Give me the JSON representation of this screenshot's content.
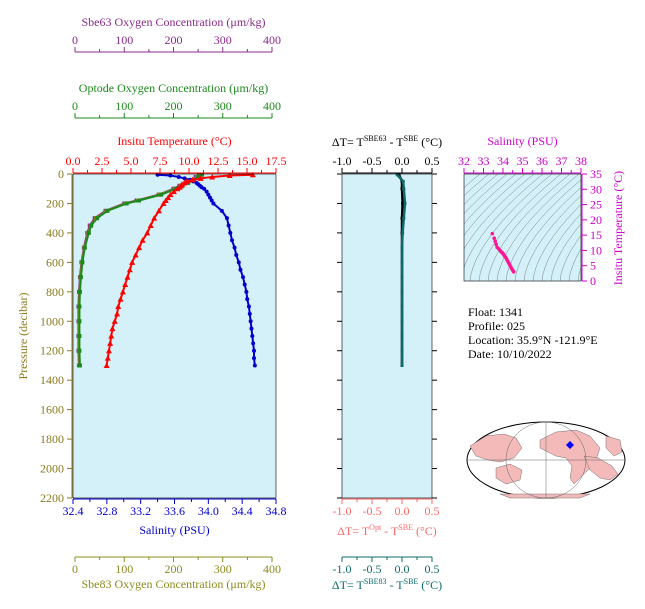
{
  "colors": {
    "sbe63": "#8b2a8b",
    "optode": "#1b8a1b",
    "temperature": "#ff0000",
    "salinity": "#0000cc",
    "pressure": "#8b7a1e",
    "sbe83": "#8b8b1e",
    "dt_top": "#000000",
    "dt_opt": "#ff6666",
    "dt_sbe83": "#0f6b6b",
    "panel_bg": "#d4f0f8",
    "ts_axis": "#cc00cc",
    "ts_points": "#ff1493"
  },
  "axes": {
    "sbe63": {
      "label": "Sbe63 Oxygen Concentration (μm/kg)",
      "ticks": [
        "0",
        "100",
        "200",
        "300",
        "400"
      ],
      "range": [
        0,
        400
      ]
    },
    "optode": {
      "label": "Optode Oxygen Concentration (μm/kg)",
      "ticks": [
        "0",
        "100",
        "200",
        "300",
        "400"
      ],
      "range": [
        0,
        400
      ]
    },
    "temperature": {
      "label": "Insitu Temperature (°C)",
      "ticks": [
        "0.0",
        "2.5",
        "5.0",
        "7.5",
        "10.0",
        "12.5",
        "15.0",
        "17.5"
      ],
      "range": [
        0,
        17.5
      ]
    },
    "pressure": {
      "label": "Pressure (decibar)",
      "ticks": [
        "0",
        "200",
        "400",
        "600",
        "800",
        "1000",
        "1200",
        "1400",
        "1600",
        "1800",
        "2000",
        "2200"
      ],
      "range": [
        0,
        2200
      ]
    },
    "salinity": {
      "label": "Salinity (PSU)",
      "ticks": [
        "32.4",
        "32.8",
        "33.2",
        "33.6",
        "34.0",
        "34.4",
        "34.8"
      ],
      "range": [
        32.4,
        34.8
      ]
    },
    "sbe83": {
      "label": "Sbe83 Oxygen Concentration (μm/kg)",
      "ticks": [
        "0",
        "100",
        "200",
        "300",
        "400"
      ],
      "range": [
        0,
        400
      ]
    },
    "dt_ticks": [
      "-1.0",
      "-0.5",
      "0.0",
      "0.5"
    ],
    "dt_range": [
      -1.0,
      0.5
    ],
    "dt_top_label": "ΔT= T<sup>SBE63</sup> - T<sup>SBE</sup> (°C)",
    "dt_opt_label": "ΔT= T<sup>Opt</sup> - T<sup>SBE</sup> (°C)",
    "dt_sbe83_label": "ΔT= T<sup>SBE83</sup> - T<sup>SBE</sup> (°C)",
    "ts_salinity": {
      "label": "Salinity (PSU)",
      "ticks": [
        "32",
        "33",
        "34",
        "35",
        "36",
        "37",
        "38"
      ],
      "range": [
        32,
        38
      ]
    },
    "ts_temperature": {
      "label": "Insitu Temperature (°C)",
      "ticks": [
        "0",
        "5",
        "10",
        "15",
        "20",
        "25",
        "30",
        "35"
      ],
      "range": [
        0,
        35
      ]
    }
  },
  "info": {
    "float": "Float:  1341",
    "profile": "Profile:  025",
    "location": "Location:  35.9°N  -121.9°E",
    "date": "Date:  10/10/2022"
  },
  "chart_data": [
    {
      "type": "line",
      "title": "",
      "ylabel": "Pressure (decibar)",
      "ylim": [
        2200,
        0
      ],
      "series": [
        {
          "name": "Insitu Temperature (°C)",
          "color": "#ff0000",
          "marker": "triangle",
          "pressure": [
            5,
            10,
            20,
            30,
            40,
            50,
            60,
            70,
            80,
            90,
            100,
            120,
            140,
            160,
            180,
            200,
            250,
            300,
            350,
            400,
            450,
            500,
            550,
            600,
            650,
            700,
            750,
            800,
            850,
            900,
            950,
            1000,
            1050,
            1100,
            1150,
            1200,
            1250,
            1300
          ],
          "values": [
            15.5,
            13.5,
            12.0,
            11.0,
            10.3,
            9.8,
            9.6,
            9.4,
            9.3,
            9.2,
            9.0,
            8.7,
            8.4,
            8.2,
            8.0,
            7.8,
            7.4,
            7.0,
            6.7,
            6.4,
            6.0,
            5.7,
            5.4,
            5.1,
            4.9,
            4.7,
            4.5,
            4.3,
            4.1,
            3.9,
            3.8,
            3.6,
            3.4,
            3.3,
            3.2,
            3.1,
            3.0,
            2.9
          ]
        },
        {
          "name": "Salinity (PSU)",
          "color": "#0000cc",
          "marker": "dot",
          "pressure": [
            5,
            10,
            20,
            30,
            40,
            50,
            60,
            70,
            80,
            90,
            100,
            120,
            140,
            160,
            180,
            200,
            250,
            300,
            350,
            400,
            450,
            500,
            550,
            600,
            650,
            700,
            750,
            800,
            850,
            900,
            950,
            1000,
            1050,
            1100,
            1150,
            1200,
            1250,
            1300
          ],
          "values": [
            33.4,
            33.55,
            33.65,
            33.72,
            33.78,
            33.82,
            33.86,
            33.88,
            33.9,
            33.92,
            33.95,
            33.98,
            34.0,
            34.02,
            34.04,
            34.06,
            34.16,
            34.22,
            34.24,
            34.26,
            34.28,
            34.31,
            34.33,
            34.36,
            34.38,
            34.41,
            34.43,
            34.45,
            34.46,
            34.48,
            34.49,
            34.5,
            34.51,
            34.52,
            34.53,
            34.54,
            34.54,
            34.55
          ]
        },
        {
          "name": "Sbe63 Oxygen Concentration (μm/kg)",
          "color": "#8b2a8b",
          "marker": "square",
          "pressure": [
            5,
            20,
            40,
            60,
            80,
            100,
            140,
            180,
            200,
            250,
            300,
            350,
            400,
            500,
            600,
            700,
            800,
            900,
            1000,
            1100,
            1200,
            1300
          ],
          "values": [
            252,
            245,
            238,
            225,
            212,
            200,
            170,
            125,
            100,
            62,
            40,
            30,
            25,
            18,
            13,
            10,
            8,
            7,
            7,
            7,
            7,
            8
          ]
        },
        {
          "name": "Optode Oxygen Concentration (μm/kg)",
          "color": "#1b8a1b",
          "marker": "square",
          "pressure": [
            5,
            20,
            40,
            60,
            80,
            100,
            140,
            180,
            200,
            250,
            300,
            350,
            400,
            500,
            600,
            700,
            800,
            900,
            1000,
            1100,
            1200,
            1300
          ],
          "values": [
            258,
            250,
            242,
            230,
            218,
            205,
            175,
            130,
            105,
            66,
            45,
            33,
            28,
            20,
            15,
            12,
            10,
            9,
            9,
            9,
            9,
            10
          ]
        },
        {
          "name": "Sbe83 Oxygen Concentration (μm/kg)",
          "color": "#8b8b1e",
          "marker": "square",
          "pressure": [
            5,
            20,
            40,
            60,
            80,
            100,
            140,
            180,
            200,
            250,
            300,
            350,
            400,
            500,
            600,
            700,
            800,
            900,
            1000,
            1100,
            1200,
            1300
          ],
          "values": [
            255,
            248,
            240,
            228,
            215,
            203,
            172,
            128,
            103,
            64,
            43,
            32,
            27,
            19,
            14,
            11,
            9,
            8,
            8,
            8,
            8,
            9
          ]
        }
      ]
    },
    {
      "type": "line",
      "title": "",
      "xlabel": "ΔT",
      "xlim": [
        -1.0,
        0.5
      ],
      "ylim": [
        2200,
        0
      ],
      "series": [
        {
          "name": "SBE63",
          "color": "#000000",
          "pressure": [
            5,
            50,
            100,
            200,
            300,
            400,
            500,
            600,
            700,
            800,
            900,
            1000,
            1100,
            1200,
            1300
          ],
          "values": [
            -0.05,
            0.0,
            0.0,
            0.01,
            0.0,
            0.0,
            0.0,
            0.0,
            0.0,
            0.0,
            0.0,
            0.0,
            0.0,
            0.0,
            0.0
          ]
        },
        {
          "name": "SBE83",
          "color": "#0f6b6b",
          "pressure": [
            5,
            50,
            100,
            200,
            300,
            400,
            500,
            600,
            700,
            800,
            900,
            1000,
            1100,
            1200,
            1300
          ],
          "values": [
            -0.08,
            0.02,
            0.03,
            0.05,
            0.03,
            0.01,
            0.0,
            0.0,
            0.0,
            0.0,
            0.0,
            0.0,
            0.0,
            0.0,
            0.0
          ]
        }
      ]
    },
    {
      "type": "scatter",
      "title": "",
      "xlabel": "Salinity (PSU)",
      "ylabel": "Insitu Temperature (°C)",
      "xlim": [
        32,
        38
      ],
      "ylim": [
        0,
        35
      ],
      "x": [
        33.45,
        33.55,
        33.6,
        33.65,
        33.7,
        33.78,
        33.85,
        33.9,
        33.95,
        34.0,
        34.05,
        34.1,
        34.15,
        34.2,
        34.25,
        34.3,
        34.35,
        34.4,
        34.45,
        34.5,
        34.55
      ],
      "y": [
        15.5,
        14.0,
        13.0,
        12.0,
        11.0,
        10.5,
        10.0,
        9.6,
        9.3,
        9.0,
        8.5,
        8.0,
        7.6,
        7.0,
        6.4,
        5.8,
        5.2,
        4.6,
        4.0,
        3.5,
        3.0
      ]
    }
  ]
}
